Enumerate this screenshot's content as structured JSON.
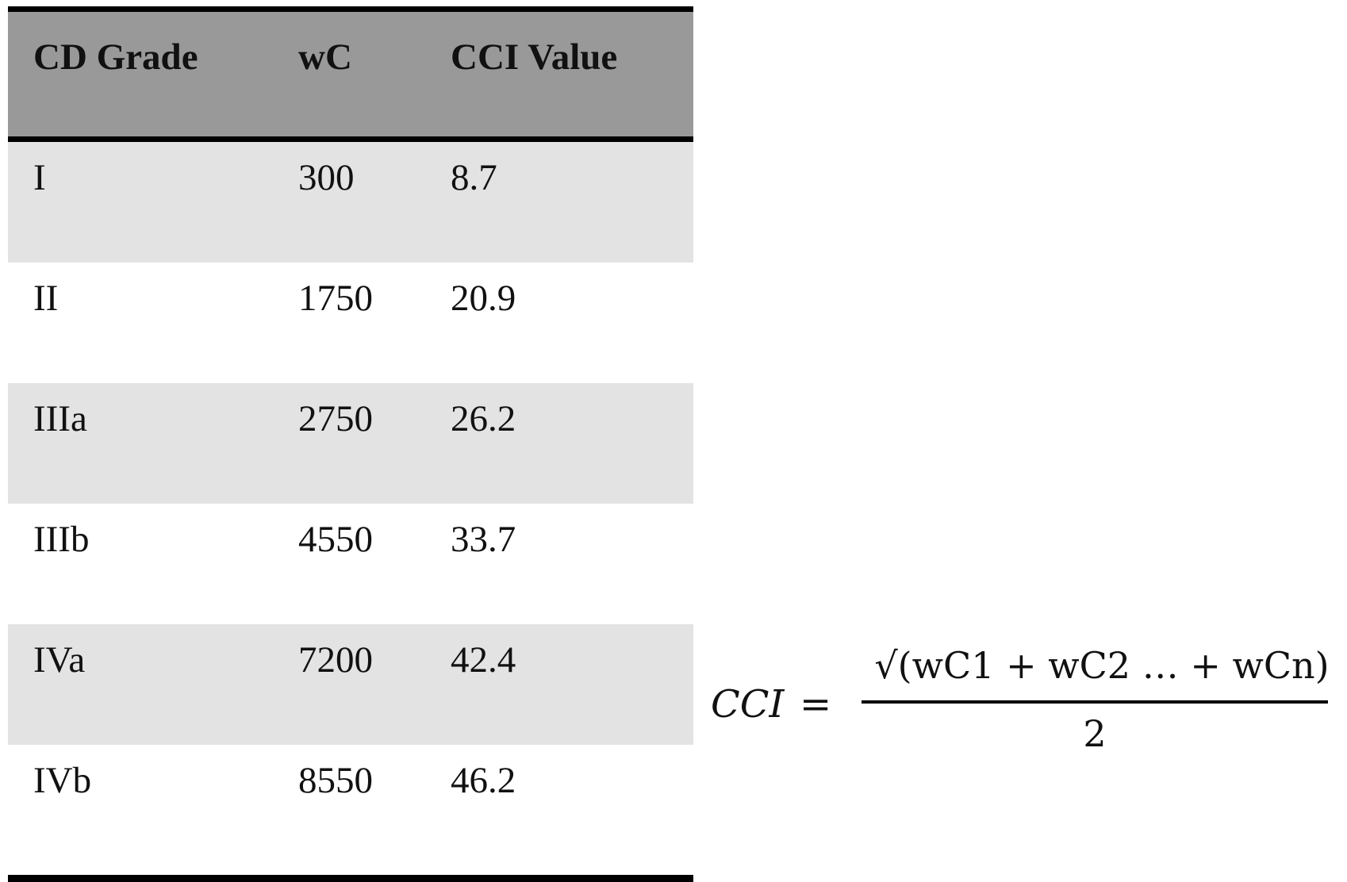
{
  "table": {
    "headers": [
      "CD Grade",
      "wC",
      "CCI Value"
    ],
    "rows": [
      [
        "I",
        "300",
        "8.7"
      ],
      [
        "II",
        "1750",
        "20.9"
      ],
      [
        "IIIa",
        "2750",
        "26.2"
      ],
      [
        "IIIb",
        "4550",
        "33.7"
      ],
      [
        "IVa",
        "7200",
        "42.4"
      ],
      [
        "IVb",
        "8550",
        "46.2"
      ]
    ],
    "colors": {
      "header_background": "#999999",
      "shaded_row": "#e3e3e3",
      "plain_row": "#ffffff",
      "rules": "#000000"
    }
  },
  "formula": {
    "lhs": "CCI",
    "equals": "=",
    "numerator": "√(wC1 + wC2 … + wCn)",
    "denominator": "2"
  }
}
